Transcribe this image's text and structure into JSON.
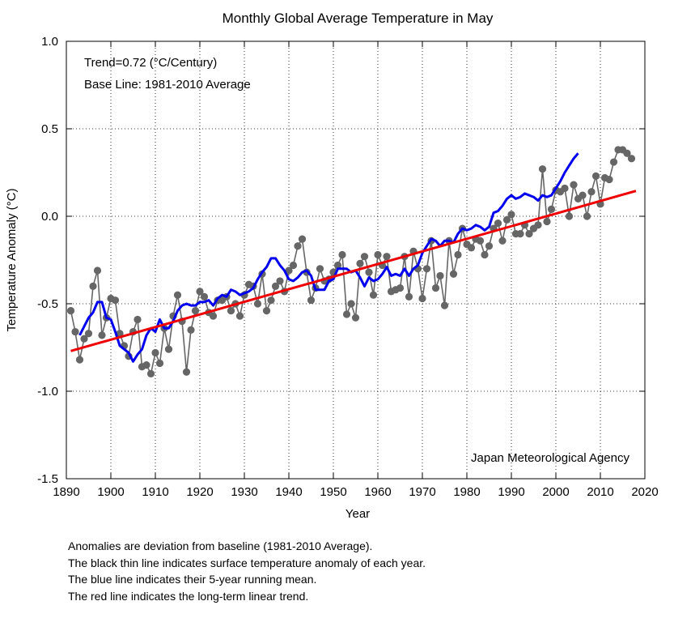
{
  "chart_data": {
    "type": "line",
    "title": "Monthly Global Average Temperature in May",
    "xlabel": "Year",
    "ylabel": "Temperature Anomaly (°C)",
    "xlim": [
      1890,
      2020
    ],
    "ylim": [
      -1.5,
      1.0
    ],
    "xticks": [
      1890,
      1900,
      1910,
      1920,
      1930,
      1940,
      1950,
      1960,
      1970,
      1980,
      1990,
      2000,
      2010,
      2020
    ],
    "yticks": [
      -1.5,
      -1.0,
      -0.5,
      0.0,
      0.5,
      1.0
    ],
    "ytick_labels": [
      "-1.5",
      "-1.0",
      "-0.5",
      "0.0",
      "0.5",
      "1.0"
    ],
    "annotations": {
      "trend": "Trend=0.72 (°C/Century)",
      "baseline": "Base Line: 1981-2010 Average",
      "source": "Japan Meteorological Agency"
    },
    "series": [
      {
        "name": "Annual anomaly",
        "color": "#666666",
        "x_start": 1891,
        "values": [
          -0.54,
          -0.66,
          -0.82,
          -0.7,
          -0.67,
          -0.4,
          -0.31,
          -0.68,
          -0.58,
          -0.47,
          -0.48,
          -0.67,
          -0.74,
          -0.8,
          -0.66,
          -0.59,
          -0.86,
          -0.85,
          -0.9,
          -0.78,
          -0.84,
          -0.64,
          -0.76,
          -0.57,
          -0.45,
          -0.6,
          -0.89,
          -0.65,
          -0.54,
          -0.43,
          -0.46,
          -0.55,
          -0.57,
          -0.48,
          -0.48,
          -0.46,
          -0.54,
          -0.5,
          -0.57,
          -0.45,
          -0.39,
          -0.4,
          -0.5,
          -0.33,
          -0.54,
          -0.48,
          -0.4,
          -0.37,
          -0.43,
          -0.31,
          -0.28,
          -0.17,
          -0.13,
          -0.32,
          -0.48,
          -0.41,
          -0.3,
          -0.37,
          -0.36,
          -0.32,
          -0.28,
          -0.22,
          -0.56,
          -0.5,
          -0.58,
          -0.27,
          -0.23,
          -0.32,
          -0.45,
          -0.22,
          -0.28,
          -0.23,
          -0.43,
          -0.42,
          -0.41,
          -0.23,
          -0.46,
          -0.2,
          -0.3,
          -0.47,
          -0.3,
          -0.14,
          -0.41,
          -0.34,
          -0.51,
          -0.14,
          -0.33,
          -0.22,
          -0.07,
          -0.16,
          -0.18,
          -0.13,
          -0.14,
          -0.22,
          -0.17,
          -0.07,
          -0.04,
          -0.14,
          -0.02,
          0.01,
          -0.1,
          -0.1,
          -0.05,
          -0.1,
          -0.07,
          -0.05,
          0.27,
          -0.03,
          0.04,
          0.15,
          0.14,
          0.16,
          0.0,
          0.18,
          0.1,
          0.12,
          0.0,
          0.14,
          0.23,
          0.07,
          0.22,
          0.21,
          0.31,
          0.38,
          0.38,
          0.36,
          0.33
        ]
      },
      {
        "name": "5-year running mean",
        "color": "#0000ee",
        "x_start": 1893,
        "values": [
          -0.68,
          -0.63,
          -0.58,
          -0.55,
          -0.49,
          -0.49,
          -0.58,
          -0.59,
          -0.66,
          -0.74,
          -0.76,
          -0.78,
          -0.83,
          -0.79,
          -0.76,
          -0.68,
          -0.64,
          -0.66,
          -0.59,
          -0.64,
          -0.64,
          -0.6,
          -0.54,
          -0.51,
          -0.5,
          -0.51,
          -0.51,
          -0.49,
          -0.49,
          -0.48,
          -0.51,
          -0.47,
          -0.45,
          -0.46,
          -0.42,
          -0.43,
          -0.45,
          -0.44,
          -0.43,
          -0.41,
          -0.36,
          -0.32,
          -0.29,
          -0.24,
          -0.24,
          -0.28,
          -0.31,
          -0.36,
          -0.37,
          -0.35,
          -0.32,
          -0.31,
          -0.34,
          -0.42,
          -0.42,
          -0.42,
          -0.37,
          -0.36,
          -0.3,
          -0.3,
          -0.3,
          -0.32,
          -0.31,
          -0.35,
          -0.4,
          -0.35,
          -0.37,
          -0.36,
          -0.33,
          -0.29,
          -0.34,
          -0.33,
          -0.34,
          -0.3,
          -0.34,
          -0.3,
          -0.28,
          -0.21,
          -0.17,
          -0.13,
          -0.14,
          -0.17,
          -0.14,
          -0.14,
          -0.15,
          -0.1,
          -0.07,
          -0.08,
          -0.07,
          -0.05,
          -0.06,
          -0.08,
          -0.06,
          0.02,
          0.03,
          0.06,
          0.1,
          0.12,
          0.1,
          0.11,
          0.13,
          0.12,
          0.11,
          0.09,
          0.12,
          0.11,
          0.12,
          0.16,
          0.2,
          0.25,
          0.29,
          0.33,
          0.36
        ]
      },
      {
        "name": "Linear trend",
        "color": "#ee0000",
        "x": [
          1891,
          2018
        ],
        "values": [
          -0.77,
          0.145
        ]
      }
    ]
  },
  "notes": {
    "line1": "Anomalies are deviation from baseline (1981-2010 Average).",
    "line2": "The black thin line indicates surface temperature anomaly of each year.",
    "line3": "The blue line indicates their 5-year running mean.",
    "line4": "The red line indicates the long-term linear trend."
  }
}
